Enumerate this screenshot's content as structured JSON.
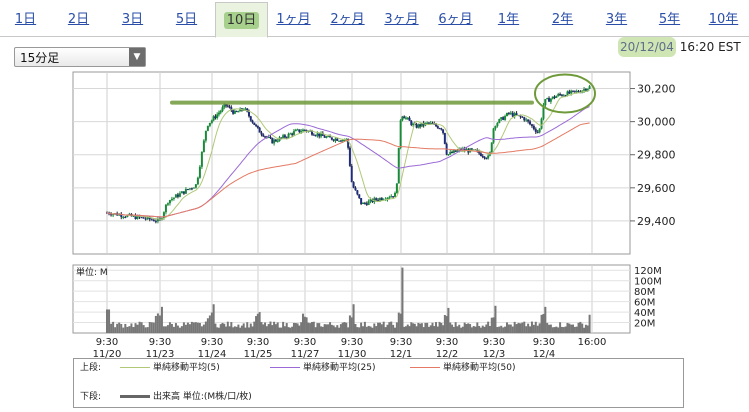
{
  "tabs": [
    {
      "label": "1日"
    },
    {
      "label": "2日"
    },
    {
      "label": "3日"
    },
    {
      "label": "5日"
    },
    {
      "label": "10日",
      "active": true
    },
    {
      "label": "1ヶ月"
    },
    {
      "label": "2ヶ月"
    },
    {
      "label": "3ヶ月"
    },
    {
      "label": "6ヶ月"
    },
    {
      "label": "1年"
    },
    {
      "label": "2年"
    },
    {
      "label": "3年"
    },
    {
      "label": "5年"
    },
    {
      "label": "10年"
    }
  ],
  "period_select": {
    "value": "15分足"
  },
  "timestamp": {
    "date": "20/12/04",
    "time": "16:20 EST"
  },
  "chart_data": {
    "type": "candlestick",
    "price_axis": {
      "ticks": [
        "30,200",
        "30,000",
        "29,800",
        "29,600",
        "29,400"
      ],
      "range": [
        29200,
        30300
      ]
    },
    "volume_axis": {
      "unit_label": "単位: M",
      "ticks": [
        "120M",
        "100M",
        "80M",
        "60M",
        "40M",
        "20M"
      ],
      "range": [
        0,
        130
      ]
    },
    "x_ticks": [
      {
        "time": "9:30",
        "date": "11/20"
      },
      {
        "time": "9:30",
        "date": "11/23"
      },
      {
        "time": "9:30",
        "date": "11/24"
      },
      {
        "time": "9:30",
        "date": "11/25"
      },
      {
        "time": "9:30",
        "date": "11/27"
      },
      {
        "time": "9:30",
        "date": "11/30"
      },
      {
        "time": "9:30",
        "date": "12/1"
      },
      {
        "time": "9:30",
        "date": "12/2"
      },
      {
        "time": "9:30",
        "date": "12/3"
      },
      {
        "time": "9:30",
        "date": "12/4"
      },
      {
        "time": "16:00",
        "date": ""
      }
    ],
    "price_path": [
      [
        0,
        29450
      ],
      [
        1.0,
        29400
      ],
      [
        1.15,
        29520
      ],
      [
        1.7,
        29620
      ],
      [
        1.9,
        29980
      ],
      [
        2.3,
        30100
      ],
      [
        2.5,
        30050
      ],
      [
        2.7,
        30080
      ],
      [
        3.0,
        29950
      ],
      [
        3.3,
        29880
      ],
      [
        3.5,
        29900
      ],
      [
        3.8,
        29940
      ],
      [
        4.0,
        29950
      ],
      [
        4.5,
        29900
      ],
      [
        4.9,
        29890
      ],
      [
        5.0,
        29620
      ],
      [
        5.2,
        29500
      ],
      [
        5.5,
        29530
      ],
      [
        5.9,
        29560
      ],
      [
        6.0,
        30050
      ],
      [
        6.3,
        29970
      ],
      [
        6.6,
        29990
      ],
      [
        6.9,
        29960
      ],
      [
        7.0,
        29800
      ],
      [
        7.3,
        29830
      ],
      [
        7.6,
        29820
      ],
      [
        7.9,
        29780
      ],
      [
        8.0,
        29980
      ],
      [
        8.3,
        30050
      ],
      [
        8.6,
        30020
      ],
      [
        8.9,
        29930
      ],
      [
        9.0,
        30120
      ],
      [
        9.3,
        30160
      ],
      [
        9.7,
        30180
      ],
      [
        9.95,
        30210
      ]
    ],
    "volume_day_start_ratio": [
      45,
      50,
      55,
      40,
      30,
      55,
      125,
      48,
      52,
      50,
      30
    ],
    "series": [
      {
        "name": "単純移動平均(5)",
        "color": "#b0c878"
      },
      {
        "name": "単純移動平均(25)",
        "color": "#9b6ad6"
      },
      {
        "name": "単純移動平均(50)",
        "color": "#e47a64"
      }
    ],
    "volume_series": {
      "name": "出来高 単位:(M株/口/枚)",
      "color": "#666666"
    },
    "annotations": {
      "resistance_line_price": 30115,
      "highlight": "ellipse-around-latest-high"
    }
  },
  "legend": {
    "upper_label": "上段:",
    "lower_label": "下段:"
  }
}
